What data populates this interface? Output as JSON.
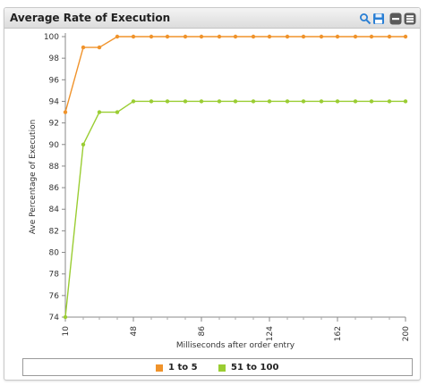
{
  "window": {
    "title": "Average Rate of Execution",
    "icons": [
      "search-icon",
      "save-icon",
      "minimize-icon",
      "close-icon"
    ]
  },
  "chart_data": {
    "type": "line",
    "title": "",
    "xlabel": "Milliseconds after order entry",
    "ylabel": "Ave Percentage of Execution",
    "x": [
      10,
      20,
      29,
      39,
      48,
      58,
      67,
      77,
      86,
      96,
      105,
      115,
      124,
      134,
      143,
      153,
      162,
      172,
      181,
      191,
      200
    ],
    "xticks": [
      "10",
      "48",
      "86",
      "124",
      "162",
      "200"
    ],
    "ylim": [
      74,
      100
    ],
    "yticks": [
      74,
      76,
      78,
      80,
      82,
      84,
      86,
      88,
      90,
      92,
      94,
      96,
      98,
      100
    ],
    "grid": false,
    "legend_position": "bottom",
    "series": [
      {
        "name": "1 to 5",
        "color": "#f0932b",
        "values": [
          93,
          99,
          99,
          100,
          100,
          100,
          100,
          100,
          100,
          100,
          100,
          100,
          100,
          100,
          100,
          100,
          100,
          100,
          100,
          100,
          100
        ]
      },
      {
        "name": "51 to 100",
        "color": "#9acd32",
        "values": [
          74,
          90,
          93,
          93,
          94,
          94,
          94,
          94,
          94,
          94,
          94,
          94,
          94,
          94,
          94,
          94,
          94,
          94,
          94,
          94,
          94
        ]
      }
    ]
  },
  "legend": {
    "items": [
      {
        "label": "1 to 5",
        "color": "#f0932b"
      },
      {
        "label": "51 to 100",
        "color": "#9acd32"
      }
    ]
  }
}
